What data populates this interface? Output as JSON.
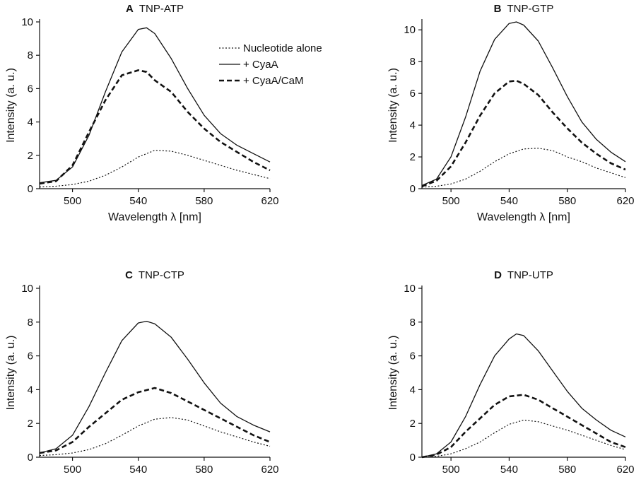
{
  "figure": {
    "legend": [
      {
        "label": "Nucleotide alone",
        "style": "dotted"
      },
      {
        "label": "+ CyaA",
        "style": "solid"
      },
      {
        "label": "+ CyaA/CaM",
        "style": "dashed"
      }
    ]
  },
  "chart_data": [
    {
      "type": "line",
      "panel_letter": "A",
      "title": "TNP-ATP",
      "xlabel": "Wavelength λ [nm]",
      "ylabel": "Intensity (a. u.)",
      "xlim": [
        480,
        620
      ],
      "ylim": [
        0,
        10
      ],
      "xticks": [
        500,
        540,
        580,
        620
      ],
      "yticks": [
        0,
        2,
        4,
        6,
        8,
        10
      ],
      "legend_position": "top-right",
      "series": [
        {
          "name": "Nucleotide alone",
          "style": "dotted",
          "x": [
            480,
            490,
            500,
            510,
            520,
            530,
            540,
            550,
            560,
            570,
            580,
            590,
            600,
            610,
            620
          ],
          "y": [
            0.1,
            0.15,
            0.25,
            0.45,
            0.8,
            1.3,
            1.9,
            2.3,
            2.25,
            2.0,
            1.7,
            1.4,
            1.1,
            0.85,
            0.6
          ]
        },
        {
          "name": "+ CyaA",
          "style": "solid",
          "x": [
            480,
            490,
            500,
            510,
            520,
            530,
            540,
            545,
            550,
            560,
            570,
            580,
            590,
            600,
            610,
            620
          ],
          "y": [
            0.35,
            0.5,
            1.3,
            3.2,
            5.8,
            8.2,
            9.55,
            9.65,
            9.3,
            7.8,
            6.0,
            4.4,
            3.3,
            2.6,
            2.1,
            1.6
          ]
        },
        {
          "name": "+ CyaA/CaM",
          "style": "dashed",
          "x": [
            480,
            490,
            500,
            510,
            520,
            530,
            540,
            545,
            550,
            560,
            570,
            580,
            590,
            600,
            610,
            620
          ],
          "y": [
            0.3,
            0.45,
            1.4,
            3.4,
            5.3,
            6.8,
            7.1,
            7.0,
            6.5,
            5.8,
            4.6,
            3.6,
            2.8,
            2.2,
            1.6,
            1.1
          ]
        }
      ]
    },
    {
      "type": "line",
      "panel_letter": "B",
      "title": "TNP-GTP",
      "xlabel": "Wavelength λ [nm]",
      "ylabel": "Intensity (a. u.)",
      "xlim": [
        480,
        620
      ],
      "ylim": [
        0,
        10.5
      ],
      "xticks": [
        500,
        540,
        580,
        620
      ],
      "yticks": [
        0,
        2,
        4,
        6,
        8,
        10
      ],
      "series": [
        {
          "name": "Nucleotide alone",
          "style": "dotted",
          "x": [
            480,
            490,
            500,
            510,
            520,
            530,
            540,
            550,
            560,
            570,
            580,
            590,
            600,
            610,
            620
          ],
          "y": [
            0.1,
            0.15,
            0.3,
            0.6,
            1.1,
            1.7,
            2.2,
            2.5,
            2.55,
            2.4,
            2.0,
            1.7,
            1.3,
            1.0,
            0.7
          ]
        },
        {
          "name": "+ CyaA",
          "style": "solid",
          "x": [
            480,
            490,
            500,
            510,
            520,
            530,
            540,
            545,
            550,
            560,
            570,
            580,
            590,
            600,
            610,
            620
          ],
          "y": [
            0.2,
            0.6,
            2.0,
            4.5,
            7.4,
            9.4,
            10.4,
            10.5,
            10.3,
            9.3,
            7.6,
            5.8,
            4.2,
            3.1,
            2.3,
            1.7
          ]
        },
        {
          "name": "+ CyaA/CaM",
          "style": "dashed",
          "x": [
            480,
            490,
            500,
            510,
            520,
            530,
            540,
            545,
            550,
            560,
            570,
            580,
            590,
            600,
            610,
            620
          ],
          "y": [
            0.15,
            0.5,
            1.4,
            2.9,
            4.6,
            6.0,
            6.75,
            6.8,
            6.6,
            5.9,
            4.8,
            3.8,
            2.9,
            2.2,
            1.6,
            1.2
          ]
        }
      ]
    },
    {
      "type": "line",
      "panel_letter": "C",
      "title": "TNP-CTP",
      "xlabel": "Wavelength λ [nm]",
      "ylabel": "Intensity (a. u.)",
      "xlim": [
        480,
        620
      ],
      "ylim": [
        0,
        10
      ],
      "xticks": [
        500,
        540,
        580,
        620
      ],
      "yticks": [
        0,
        2,
        4,
        6,
        8,
        10
      ],
      "series": [
        {
          "name": "Nucleotide alone",
          "style": "dotted",
          "x": [
            480,
            490,
            500,
            510,
            520,
            530,
            540,
            550,
            560,
            570,
            580,
            590,
            600,
            610,
            620
          ],
          "y": [
            0.1,
            0.15,
            0.25,
            0.45,
            0.8,
            1.3,
            1.85,
            2.25,
            2.35,
            2.2,
            1.85,
            1.5,
            1.2,
            0.9,
            0.65
          ]
        },
        {
          "name": "+ CyaA",
          "style": "solid",
          "x": [
            480,
            490,
            500,
            510,
            520,
            530,
            540,
            545,
            550,
            560,
            570,
            580,
            590,
            600,
            610,
            620
          ],
          "y": [
            0.25,
            0.5,
            1.3,
            3.0,
            5.0,
            6.9,
            7.95,
            8.05,
            7.9,
            7.1,
            5.8,
            4.4,
            3.2,
            2.4,
            1.9,
            1.5
          ]
        },
        {
          "name": "+ CyaA/CaM",
          "style": "dashed",
          "x": [
            480,
            490,
            500,
            510,
            520,
            530,
            540,
            550,
            560,
            570,
            580,
            590,
            600,
            610,
            620
          ],
          "y": [
            0.25,
            0.4,
            0.9,
            1.8,
            2.6,
            3.4,
            3.85,
            4.1,
            3.8,
            3.3,
            2.8,
            2.3,
            1.8,
            1.3,
            0.9
          ]
        }
      ]
    },
    {
      "type": "line",
      "panel_letter": "D",
      "title": "TNP-UTP",
      "xlabel": "Wavelength λ [nm]",
      "ylabel": "Intensity (a. u.)",
      "xlim": [
        480,
        620
      ],
      "ylim": [
        0,
        10
      ],
      "xticks": [
        500,
        540,
        580,
        620
      ],
      "yticks": [
        0,
        2,
        4,
        6,
        8,
        10
      ],
      "series": [
        {
          "name": "Nucleotide alone",
          "style": "dotted",
          "x": [
            480,
            490,
            500,
            510,
            520,
            530,
            540,
            550,
            560,
            570,
            580,
            590,
            600,
            610,
            620
          ],
          "y": [
            0.0,
            0.05,
            0.2,
            0.5,
            0.9,
            1.45,
            1.95,
            2.2,
            2.1,
            1.85,
            1.6,
            1.3,
            1.0,
            0.7,
            0.45
          ]
        },
        {
          "name": "+ CyaA",
          "style": "solid",
          "x": [
            480,
            490,
            500,
            510,
            520,
            530,
            540,
            545,
            550,
            560,
            570,
            580,
            590,
            600,
            610,
            620
          ],
          "y": [
            0.0,
            0.2,
            0.9,
            2.4,
            4.3,
            6.0,
            7.0,
            7.3,
            7.2,
            6.3,
            5.1,
            3.9,
            2.9,
            2.2,
            1.6,
            1.2
          ]
        },
        {
          "name": "+ CyaA/CaM",
          "style": "dashed",
          "x": [
            480,
            490,
            500,
            510,
            520,
            530,
            540,
            550,
            560,
            570,
            580,
            590,
            600,
            610,
            620
          ],
          "y": [
            0.0,
            0.15,
            0.6,
            1.5,
            2.3,
            3.1,
            3.6,
            3.7,
            3.4,
            2.9,
            2.4,
            1.9,
            1.4,
            0.9,
            0.6
          ]
        }
      ]
    }
  ]
}
